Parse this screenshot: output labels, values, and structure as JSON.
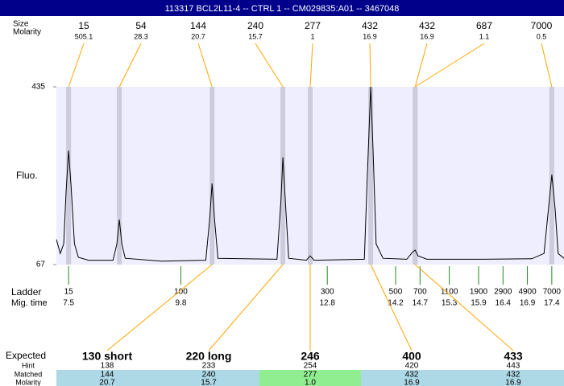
{
  "title": "113317  BCL2L11-4 -- CTRL 1 -- CM029835:A01 -- 3467048",
  "chart_data": {
    "type": "line",
    "y_label": "Fluo.",
    "color": "#000000",
    "background": "#eeeeff",
    "x": [
      7.25,
      7.33,
      7.4,
      7.45,
      7.5,
      7.55,
      7.62,
      7.7,
      7.91,
      8.41,
      8.49,
      8.54,
      8.59,
      8.66,
      9.4,
      10.31,
      10.39,
      10.44,
      10.49,
      10.56,
      11.77,
      11.85,
      11.89,
      11.94,
      12.01,
      12.37,
      12.45,
      12.53,
      13.56,
      13.62,
      13.69,
      13.74,
      13.8,
      13.94,
      14.43,
      14.54,
      14.6,
      14.66,
      14.84,
      15.99,
      16.99,
      17.24,
      17.33,
      17.4,
      17.47,
      17.53,
      17.65
    ],
    "values": [
      119,
      90,
      110,
      220,
      303,
      230,
      110,
      82,
      76,
      76,
      110,
      160,
      110,
      80,
      74,
      76,
      160,
      235,
      160,
      80,
      78,
      200,
      289,
      200,
      80,
      76,
      85,
      76,
      78,
      250,
      435,
      300,
      110,
      80,
      78,
      92,
      97,
      85,
      78,
      78,
      79,
      90,
      180,
      253,
      180,
      90,
      80
    ],
    "xlim": [
      7.25,
      17.65
    ],
    "ylim": [
      67,
      435
    ],
    "yticks": [
      67,
      435
    ]
  },
  "peaks": {
    "size_label": "Size",
    "molarity_label": "Molarity",
    "color": "#ffa500",
    "items": [
      {
        "size": 15,
        "molarity": 505.1,
        "time": 7.5
      },
      {
        "size": 54,
        "molarity": 28.3,
        "time": 8.54
      },
      {
        "size": 144,
        "molarity": 20.7,
        "time": 10.44
      },
      {
        "size": 240,
        "molarity": 15.7,
        "time": 11.89
      },
      {
        "size": 277,
        "molarity": 1,
        "time": 12.45
      },
      {
        "size": 432,
        "molarity": 16.9,
        "time": 13.69
      },
      {
        "size": 432,
        "molarity": 16.9,
        "time": 14.6
      },
      {
        "size": 687,
        "molarity": 1.1,
        "time": 14.6
      },
      {
        "size": 7000,
        "molarity": 0.5,
        "time": 17.4
      }
    ]
  },
  "ladder": {
    "label": "Ladder",
    "time_label": "Mig. time",
    "color": "#228b22",
    "items": [
      {
        "size": 15,
        "time": 7.5
      },
      {
        "size": 100,
        "time": 9.8
      },
      {
        "size": 300,
        "time": 12.8
      },
      {
        "size": 500,
        "time": 14.2
      },
      {
        "size": 700,
        "time": 14.7
      },
      {
        "size": 1100,
        "time": 15.3
      },
      {
        "size": 1900,
        "time": 15.9
      },
      {
        "size": 2900,
        "time": 16.4
      },
      {
        "size": 4900,
        "time": 16.9
      },
      {
        "size": 7000,
        "time": 17.4
      }
    ]
  },
  "expected": {
    "label": "Expected",
    "hint_label": "Hint",
    "matched_label": "Matched",
    "molarity_label": "Molarity",
    "items": [
      {
        "name": "130 short",
        "hint": 138,
        "matched": 144,
        "molarity": "20.7",
        "color": "#add8e6"
      },
      {
        "name": "220 long",
        "hint": 233,
        "matched": 240,
        "molarity": "15.7",
        "color": "#add8e6"
      },
      {
        "name": "246",
        "hint": 254,
        "matched": 277,
        "molarity": "1.0",
        "color": "#90ee90"
      },
      {
        "name": "400",
        "hint": 420,
        "matched": 432,
        "molarity": "16.9",
        "color": "#add8e6"
      },
      {
        "name": "433",
        "hint": 443,
        "matched": 432,
        "molarity": "16.9",
        "color": "#add8e6"
      }
    ]
  }
}
